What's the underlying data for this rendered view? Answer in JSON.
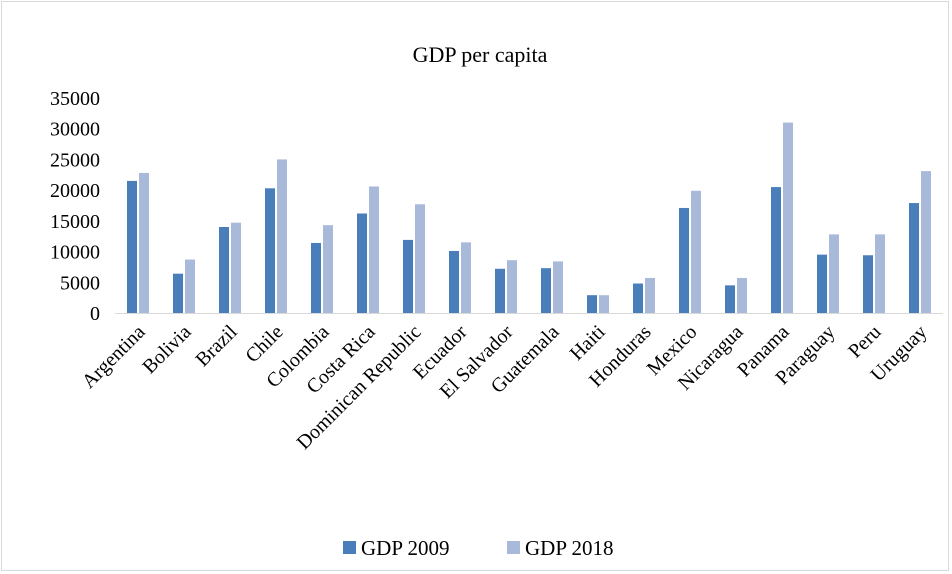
{
  "chart_data": {
    "type": "bar",
    "title": "GDP per capita",
    "xlabel": "",
    "ylabel": "",
    "ylim": [
      0,
      35000
    ],
    "yticks": [
      0,
      5000,
      10000,
      15000,
      20000,
      25000,
      30000,
      35000
    ],
    "grid": false,
    "legend_position": "bottom",
    "categories": [
      "Argentina",
      "Bolivia",
      "Brazil",
      "Chile",
      "Colombia",
      "Costa Rica",
      "Dominican Republic",
      "Ecuador",
      "El Salvador",
      "Guatemala",
      "Haiti",
      "Honduras",
      "Mexico",
      "Nicaragua",
      "Panama",
      "Paraguay",
      "Peru",
      "Uruguay"
    ],
    "series": [
      {
        "name": "GDP 2009",
        "color": "#4a7ebb",
        "values": [
          21500,
          6400,
          14000,
          20300,
          11400,
          16200,
          11900,
          10100,
          7200,
          7300,
          2900,
          4800,
          17100,
          4500,
          20500,
          9500,
          9400,
          17900
        ]
      },
      {
        "name": "GDP 2018",
        "color": "#a9b9d9",
        "values": [
          22800,
          8700,
          14700,
          25000,
          14300,
          20600,
          17700,
          11500,
          8600,
          8400,
          2900,
          5700,
          19900,
          5700,
          31000,
          12800,
          12800,
          23100
        ]
      }
    ]
  }
}
